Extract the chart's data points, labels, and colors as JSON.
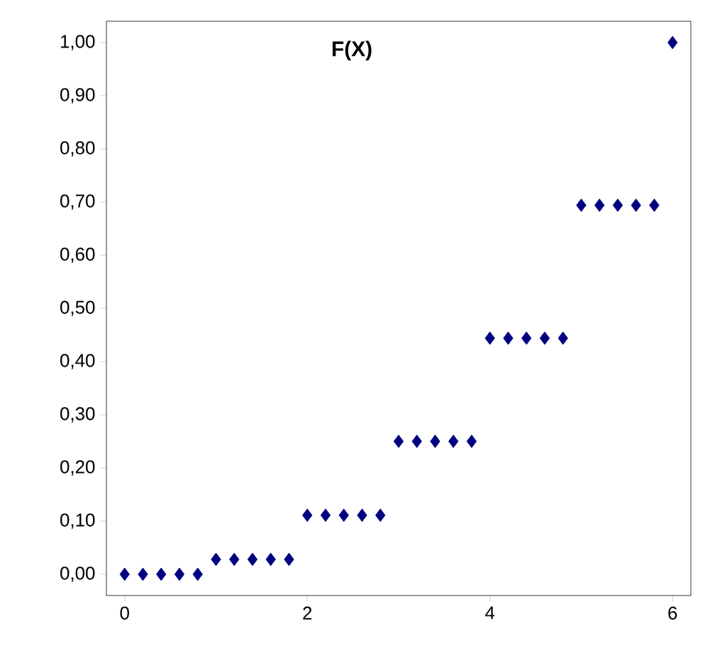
{
  "chart_data": {
    "type": "scatter",
    "title": "F(X)",
    "color": "#000080",
    "marker": "diamond",
    "grid": false,
    "x": [
      0,
      0.2,
      0.4,
      0.6,
      0.8,
      1,
      1.2,
      1.4,
      1.6,
      1.8,
      2,
      2.2,
      2.4,
      2.6,
      2.8,
      3,
      3.2,
      3.4,
      3.6,
      3.8,
      4,
      4.2,
      4.4,
      4.6,
      4.8,
      5,
      5.2,
      5.4,
      5.6,
      5.8,
      6
    ],
    "values": [
      0,
      0,
      0,
      0,
      0,
      0.028,
      0.028,
      0.028,
      0.028,
      0.028,
      0.111,
      0.111,
      0.111,
      0.111,
      0.111,
      0.25,
      0.25,
      0.25,
      0.25,
      0.25,
      0.444,
      0.444,
      0.444,
      0.444,
      0.444,
      0.694,
      0.694,
      0.694,
      0.694,
      0.694,
      1
    ],
    "xlim": [
      -0.2,
      6.2
    ],
    "ylim": [
      -0.04,
      1.04
    ],
    "xticks": [
      0,
      2,
      4,
      6
    ],
    "yticks": [
      {
        "value": 0,
        "label": "0,00"
      },
      {
        "value": 0.1,
        "label": "0,10"
      },
      {
        "value": 0.2,
        "label": "0,20"
      },
      {
        "value": 0.3,
        "label": "0,30"
      },
      {
        "value": 0.4,
        "label": "0,40"
      },
      {
        "value": 0.5,
        "label": "0,50"
      },
      {
        "value": 0.6,
        "label": "0,60"
      },
      {
        "value": 0.7,
        "label": "0,70"
      },
      {
        "value": 0.8,
        "label": "0,80"
      },
      {
        "value": 0.9,
        "label": "0,90"
      },
      {
        "value": 1,
        "label": "1,00"
      }
    ]
  }
}
